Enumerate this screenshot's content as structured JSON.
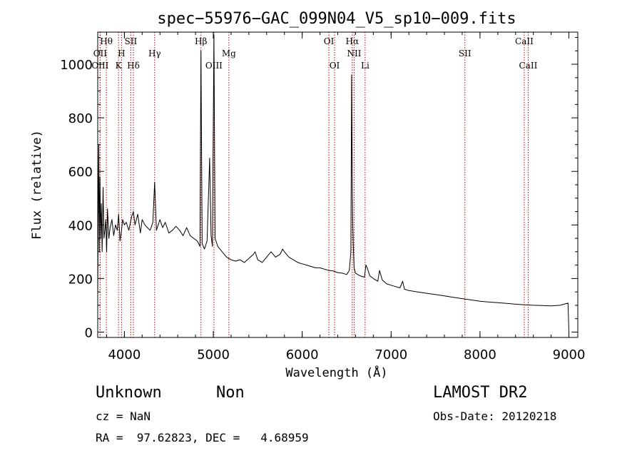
{
  "chart_data": {
    "type": "line",
    "title": "spec−55976−GAC_099N04_V5_sp10−009.fits",
    "xlabel": "Wavelength (Å)",
    "ylabel": "Flux (relative)",
    "xlim": [
      3700,
      9100
    ],
    "ylim": [
      -20,
      1120
    ],
    "xticks": [
      4000,
      5000,
      6000,
      7000,
      8000,
      9000
    ],
    "yticks": [
      0,
      200,
      400,
      600,
      800,
      1000
    ],
    "line_color": "#000000",
    "marker_color": "#cc0000",
    "series": [
      {
        "x": [
          3700,
          3705,
          3712,
          3718,
          3725,
          3732,
          3740,
          3750,
          3760,
          3770,
          3780,
          3790,
          3800,
          3810,
          3825,
          3840,
          3860,
          3880,
          3900,
          3920,
          3935,
          3950,
          3968,
          3980,
          4000,
          4020,
          4050,
          4080,
          4101,
          4120,
          4150,
          4180,
          4200,
          4230,
          4260,
          4290,
          4320,
          4340,
          4360,
          4400,
          4430,
          4460,
          4500,
          4540,
          4580,
          4620,
          4660,
          4700,
          4740,
          4780,
          4820,
          4850,
          4861,
          4875,
          4900,
          4930,
          4959,
          4975,
          4990,
          5007,
          5020,
          5050,
          5100,
          5150,
          5200,
          5250,
          5300,
          5350,
          5400,
          5450,
          5470,
          5500,
          5550,
          5600,
          5650,
          5700,
          5750,
          5780,
          5800,
          5850,
          5900,
          5950,
          6000,
          6050,
          6100,
          6150,
          6200,
          6250,
          6300,
          6350,
          6400,
          6450,
          6500,
          6530,
          6548,
          6556,
          6563,
          6568,
          6575,
          6584,
          6600,
          6650,
          6700,
          6717,
          6731,
          6760,
          6800,
          6850,
          6870,
          6900,
          6950,
          7000,
          7050,
          7100,
          7130,
          7150,
          7200,
          7300,
          7400,
          7500,
          7600,
          7700,
          7800,
          7900,
          8000,
          8100,
          8200,
          8300,
          8400,
          8500,
          8600,
          8700,
          8800,
          8900,
          8990,
          9000
        ],
        "y": [
          130,
          420,
          700,
          300,
          580,
          350,
          480,
          300,
          540,
          350,
          380,
          420,
          300,
          460,
          350,
          390,
          420,
          360,
          400,
          380,
          440,
          340,
          380,
          420,
          400,
          410,
          380,
          430,
          450,
          400,
          440,
          370,
          420,
          400,
          390,
          380,
          410,
          560,
          380,
          420,
          390,
          410,
          370,
          380,
          395,
          380,
          360,
          390,
          360,
          350,
          340,
          320,
          1050,
          330,
          310,
          340,
          650,
          360,
          320,
          1110,
          350,
          320,
          300,
          280,
          270,
          265,
          270,
          260,
          275,
          290,
          300,
          270,
          260,
          280,
          300,
          280,
          290,
          310,
          300,
          280,
          270,
          260,
          255,
          250,
          245,
          240,
          240,
          235,
          230,
          228,
          222,
          220,
          215,
          230,
          300,
          960,
          560,
          420,
          320,
          240,
          220,
          210,
          205,
          250,
          240,
          210,
          200,
          190,
          230,
          195,
          180,
          175,
          170,
          165,
          190,
          160,
          155,
          150,
          145,
          140,
          135,
          130,
          125,
          120,
          115,
          112,
          110,
          107,
          104,
          102,
          100,
          99,
          98,
          100,
          108,
          0
        ]
      }
    ],
    "lines": [
      {
        "name": "Hθ",
        "wave": 3797,
        "row": 1
      },
      {
        "name": "OII",
        "wave": 3727,
        "row": 2
      },
      {
        "name": "OIII",
        "wave": 3727,
        "row": 3
      },
      {
        "name": "H",
        "wave": 3968,
        "row": 2
      },
      {
        "name": "K",
        "wave": 3934,
        "row": 3
      },
      {
        "name": "SII",
        "wave": 4072,
        "row": 1
      },
      {
        "name": "Hδ",
        "wave": 4101,
        "row": 3
      },
      {
        "name": "Hγ",
        "wave": 4340,
        "row": 2
      },
      {
        "name": "Hβ",
        "wave": 4861,
        "row": 1
      },
      {
        "name": "OIII",
        "wave": 5007,
        "row": 3
      },
      {
        "name": "Mg",
        "wave": 5175,
        "row": 2
      },
      {
        "name": "OI",
        "wave": 6300,
        "row": 1
      },
      {
        "name": "OI",
        "wave": 6364,
        "row": 3
      },
      {
        "name": "Hα",
        "wave": 6563,
        "row": 1
      },
      {
        "name": "NII",
        "wave": 6584,
        "row": 2
      },
      {
        "name": "Li",
        "wave": 6708,
        "row": 3
      },
      {
        "name": "SII",
        "wave": 7830,
        "row": 2
      },
      {
        "name": "CaII",
        "wave": 8498,
        "row": 1
      },
      {
        "name": "CaII",
        "wave": 8542,
        "row": 3
      }
    ]
  },
  "info": {
    "object_class": "Unknown",
    "subclass": "Non",
    "survey": "LAMOST DR2",
    "redshift": "cz = NaN",
    "obs_date": "Obs-Date: 20120218",
    "coords": "RA =  97.62823, DEC =   4.68959"
  }
}
